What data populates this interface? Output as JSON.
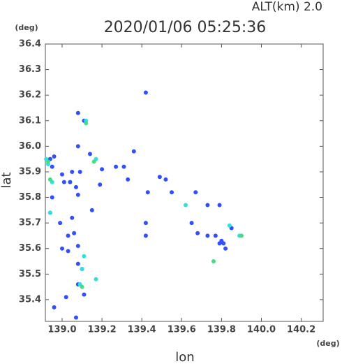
{
  "chart_data": {
    "type": "scatter",
    "title": "2020/01/06 05:25:36",
    "annotation": "ALT(km) 2.0",
    "x_label": "lon",
    "y_label": "lat",
    "x_unit": "(deg)",
    "y_unit": "(deg)",
    "xlim": [
      138.916,
      140.31
    ],
    "ylim": [
      35.315,
      36.4
    ],
    "xticks": [
      {
        "value": 139,
        "label": "139.0"
      },
      139.2,
      139.4,
      139.6,
      139.8,
      {
        "value": 140,
        "label": "140.0"
      },
      140.2
    ],
    "yticks": [
      36.4,
      36.3,
      36.2,
      36.1,
      {
        "value": 36,
        "label": "36.0"
      },
      35.9,
      35.8,
      35.7,
      35.6,
      35.5,
      35.4
    ],
    "series": [
      {
        "color": "#3050ff",
        "x": [
          139.08,
          139.08,
          139.14,
          139.2,
          138.94,
          138.96,
          138.95,
          139.05,
          139.0,
          139.01,
          139.04,
          139.07,
          139.19,
          139.15,
          139.08,
          138.95,
          138.94,
          138.99,
          139.05,
          139.06,
          139.03,
          139.0,
          139.03,
          139.08,
          139.08,
          139.1,
          139.08,
          139.11,
          139.02,
          138.96,
          139.07,
          139.09,
          139.31,
          139.33,
          139.36,
          139.27,
          139.43,
          139.42,
          139.42,
          139.49,
          139.52,
          139.55,
          139.67,
          139.73,
          139.79,
          139.65,
          139.68,
          139.73,
          139.77,
          139.79,
          139.81,
          139.82,
          139.85,
          139.8,
          139.42,
          139.11
        ],
        "y": [
          36.13,
          36.0,
          35.97,
          35.91,
          35.95,
          35.96,
          35.92,
          35.9,
          35.89,
          35.86,
          35.86,
          35.84,
          35.85,
          35.75,
          35.81,
          35.8,
          35.74,
          35.7,
          35.72,
          35.66,
          35.65,
          35.6,
          35.59,
          35.61,
          35.54,
          35.52,
          35.46,
          35.42,
          35.41,
          35.37,
          35.33,
          35.9,
          35.92,
          35.87,
          35.98,
          35.92,
          35.82,
          35.7,
          35.65,
          35.88,
          35.87,
          35.82,
          35.82,
          35.77,
          35.77,
          35.7,
          35.66,
          35.65,
          35.65,
          35.62,
          35.62,
          35.6,
          35.68,
          35.63,
          36.21,
          36.1
        ]
      },
      {
        "color": "#30e0e0",
        "x": [
          138.92,
          138.93,
          138.95,
          138.94,
          139.11,
          139.1,
          139.17,
          139.12,
          139.17,
          139.62,
          139.84,
          139.89,
          139.09
        ],
        "y": [
          35.95,
          35.93,
          35.86,
          35.74,
          35.57,
          35.52,
          35.48,
          36.1,
          35.95,
          35.77,
          35.69,
          35.65,
          35.46
        ]
      },
      {
        "color": "#40e080",
        "x": [
          138.93,
          138.94,
          139.16,
          139.76,
          139.1,
          139.12,
          139.9
        ],
        "y": [
          35.94,
          35.87,
          35.94,
          35.55,
          35.45,
          36.09,
          35.65
        ]
      }
    ]
  }
}
